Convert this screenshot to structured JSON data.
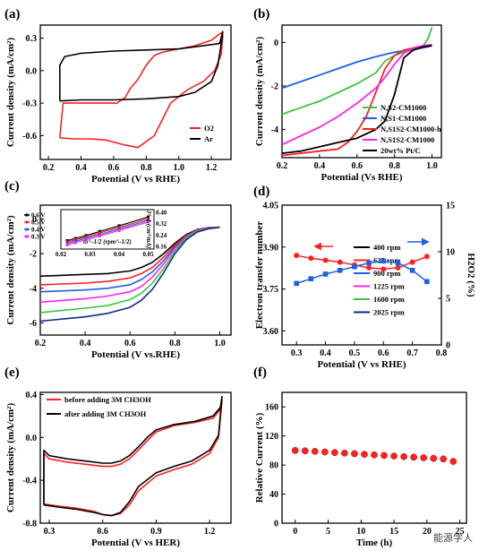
{
  "chart_data": [
    {
      "panel": "(a)",
      "type": "line",
      "xlabel": "Potential (V vs RHE)",
      "ylabel": "Current density (mA/cm²)",
      "xlim": [
        0.15,
        1.32
      ],
      "ylim": [
        -0.82,
        0.42
      ],
      "xticks": [
        "0.2",
        "0.4",
        "0.6",
        "0.8",
        "1.0",
        "1.2"
      ],
      "yticks": [
        "0.3",
        "0.0",
        "-0.3",
        "-0.6"
      ],
      "legend_position": "bottom-right",
      "series": [
        {
          "name": "O2",
          "color": "#ff2020",
          "x": [
            0.27,
            0.35,
            0.45,
            0.55,
            0.65,
            0.75,
            0.85,
            0.95,
            1.05,
            1.15,
            1.22,
            1.26,
            1.27,
            1.26,
            1.2,
            1.1,
            1.0,
            0.9,
            0.85,
            0.8,
            0.75,
            0.7,
            0.67,
            0.62,
            0.55,
            0.45,
            0.35,
            0.29,
            0.27
          ],
          "y": [
            -0.62,
            -0.63,
            -0.63,
            -0.64,
            -0.68,
            -0.71,
            -0.6,
            -0.3,
            -0.18,
            -0.1,
            0.0,
            0.15,
            0.32,
            0.35,
            0.28,
            0.23,
            0.2,
            0.17,
            0.14,
            0.05,
            -0.08,
            -0.17,
            -0.25,
            -0.3,
            -0.3,
            -0.3,
            -0.3,
            -0.3,
            -0.62
          ]
        },
        {
          "name": "Ar",
          "color": "#000000",
          "x": [
            0.27,
            0.4,
            0.6,
            0.8,
            1.0,
            1.1,
            1.2,
            1.24,
            1.26,
            1.27,
            1.25,
            1.2,
            1.1,
            1.0,
            0.8,
            0.6,
            0.4,
            0.3,
            0.27,
            0.27
          ],
          "y": [
            -0.28,
            -0.27,
            -0.27,
            -0.26,
            -0.24,
            -0.2,
            -0.1,
            0.05,
            0.25,
            0.36,
            0.25,
            0.24,
            0.22,
            0.2,
            0.19,
            0.18,
            0.16,
            0.13,
            0.05,
            -0.28
          ]
        }
      ]
    },
    {
      "panel": "(b)",
      "type": "line",
      "xlabel": "Potential (Vs RHE)",
      "ylabel": "Current density (mA/cm²)",
      "xlim": [
        0.2,
        1.05
      ],
      "ylim": [
        -5.3,
        0.8
      ],
      "xticks": [
        "0.2",
        "0.4",
        "0.6",
        "0.8",
        "1.0"
      ],
      "yticks": [
        "0",
        "-2",
        "-4"
      ],
      "legend_position": "bottom-right",
      "series": [
        {
          "name": "N,S2-CM1000",
          "color": "#3cc43c",
          "x": [
            0.2,
            0.3,
            0.4,
            0.5,
            0.6,
            0.7,
            0.75,
            0.8,
            0.85,
            0.9,
            0.95,
            0.98,
            1.0
          ],
          "y": [
            -3.3,
            -3.0,
            -2.7,
            -2.3,
            -1.9,
            -1.4,
            -0.85,
            -0.6,
            -0.45,
            -0.35,
            -0.2,
            0.2,
            0.7
          ]
        },
        {
          "name": "N,S1-CM1000",
          "color": "#1e5fe6",
          "x": [
            0.2,
            0.3,
            0.4,
            0.5,
            0.6,
            0.7,
            0.8,
            0.85,
            0.9,
            0.95,
            1.0
          ],
          "y": [
            -2.1,
            -1.8,
            -1.5,
            -1.2,
            -0.9,
            -0.65,
            -0.45,
            -0.38,
            -0.32,
            -0.25,
            -0.15
          ]
        },
        {
          "name": "N,S1S2-CM1000-h",
          "color": "#ff2020",
          "x": [
            0.2,
            0.3,
            0.4,
            0.5,
            0.55,
            0.6,
            0.65,
            0.7,
            0.75,
            0.8,
            0.85,
            0.9,
            0.95,
            1.0
          ],
          "y": [
            -5.2,
            -5.1,
            -5.0,
            -4.9,
            -4.6,
            -4.1,
            -3.4,
            -2.3,
            -1.2,
            -0.6,
            -0.35,
            -0.25,
            -0.18,
            -0.12
          ]
        },
        {
          "name": "N,S1S2-CM1000",
          "color": "#ff22ee",
          "x": [
            0.2,
            0.3,
            0.4,
            0.5,
            0.6,
            0.7,
            0.75,
            0.8,
            0.85,
            0.9,
            0.95,
            1.0
          ],
          "y": [
            -4.7,
            -4.3,
            -3.9,
            -3.4,
            -2.8,
            -2.1,
            -1.6,
            -1.0,
            -0.5,
            -0.25,
            -0.15,
            -0.1
          ]
        },
        {
          "name": "20wt% Pt/C",
          "color": "#000000",
          "x": [
            0.2,
            0.3,
            0.4,
            0.5,
            0.6,
            0.7,
            0.75,
            0.8,
            0.85,
            0.9,
            0.95,
            1.0
          ],
          "y": [
            -5.1,
            -5.0,
            -4.8,
            -4.6,
            -4.4,
            -4.0,
            -3.6,
            -2.4,
            -0.7,
            -0.35,
            -0.2,
            -0.15
          ]
        }
      ]
    },
    {
      "panel": "(c)",
      "type": "line",
      "xlabel": "Potential (V vs.RHE)",
      "ylabel": "Current density (mA/cm²)",
      "xlim": [
        0.2,
        1.05
      ],
      "ylim": [
        -6.7,
        0.8
      ],
      "xticks": [
        "0.2",
        "0.4",
        "0.6",
        "0.8",
        "1.0"
      ],
      "yticks": [
        "0",
        "-2",
        "-4",
        "-6"
      ],
      "legend_position": "bottom-right",
      "series": [
        {
          "name": "400 rpm",
          "color": "#000000",
          "x": [
            0.2,
            0.4,
            0.5,
            0.6,
            0.65,
            0.7,
            0.75,
            0.8,
            0.85,
            0.9,
            0.95,
            1.0
          ],
          "y": [
            -3.3,
            -3.2,
            -3.15,
            -3.0,
            -2.8,
            -2.5,
            -2.0,
            -1.4,
            -0.9,
            -0.6,
            -0.5,
            -0.48
          ]
        },
        {
          "name": "625 rpm",
          "color": "#ff2020",
          "x": [
            0.2,
            0.4,
            0.5,
            0.6,
            0.65,
            0.7,
            0.75,
            0.8,
            0.85,
            0.9,
            0.95,
            1.0
          ],
          "y": [
            -3.8,
            -3.7,
            -3.6,
            -3.4,
            -3.15,
            -2.8,
            -2.2,
            -1.5,
            -0.95,
            -0.62,
            -0.5,
            -0.48
          ]
        },
        {
          "name": "900 rpm",
          "color": "#1e5fe6",
          "x": [
            0.2,
            0.4,
            0.5,
            0.6,
            0.65,
            0.7,
            0.75,
            0.8,
            0.85,
            0.9,
            0.95,
            1.0
          ],
          "y": [
            -4.2,
            -4.1,
            -4.0,
            -3.8,
            -3.5,
            -3.05,
            -2.4,
            -1.6,
            -1.0,
            -0.65,
            -0.52,
            -0.48
          ]
        },
        {
          "name": "1225 rpm",
          "color": "#ff22ee",
          "x": [
            0.2,
            0.4,
            0.5,
            0.6,
            0.65,
            0.7,
            0.75,
            0.8,
            0.85,
            0.9,
            0.95,
            1.0
          ],
          "y": [
            -4.8,
            -4.6,
            -4.45,
            -4.2,
            -3.9,
            -3.35,
            -2.6,
            -1.7,
            -1.05,
            -0.67,
            -0.53,
            -0.48
          ]
        },
        {
          "name": "1600 rpm",
          "color": "#3cc43c",
          "x": [
            0.2,
            0.4,
            0.5,
            0.6,
            0.65,
            0.7,
            0.75,
            0.8,
            0.85,
            0.9,
            0.95,
            1.0
          ],
          "y": [
            -5.4,
            -5.15,
            -5.0,
            -4.65,
            -4.3,
            -3.7,
            -2.85,
            -1.85,
            -1.1,
            -0.7,
            -0.55,
            -0.48
          ]
        },
        {
          "name": "2025 rpm",
          "color": "#0a2a8c",
          "x": [
            0.2,
            0.4,
            0.5,
            0.6,
            0.65,
            0.7,
            0.75,
            0.8,
            0.85,
            0.9,
            0.95,
            1.0
          ],
          "y": [
            -5.9,
            -5.65,
            -5.45,
            -5.1,
            -4.7,
            -4.05,
            -3.1,
            -2.0,
            -1.2,
            -0.75,
            -0.56,
            -0.48
          ]
        }
      ],
      "inset": {
        "type": "scatter",
        "xlabel": "ω^-1/2 (rpm^-1/2)",
        "ylabel": "J^-1 (cm²/mA)",
        "xlim": [
          0.02,
          0.052
        ],
        "ylim": [
          0.14,
          0.42
        ],
        "xticks": [
          "0.02",
          "0.03",
          "0.04",
          "0.05"
        ],
        "yticks": [
          "0.40",
          "0.32",
          "0.24",
          "0.16"
        ],
        "x": [
          0.0222,
          0.025,
          0.0286,
          0.0333,
          0.04,
          0.05
        ],
        "series": [
          {
            "name": "0.6 V",
            "color": "#000000",
            "values": [
              0.2,
              0.215,
              0.236,
              0.265,
              0.305,
              0.368
            ]
          },
          {
            "name": "0.5 V",
            "color": "#ff2020",
            "values": [
              0.19,
              0.206,
              0.226,
              0.254,
              0.293,
              0.355
            ]
          },
          {
            "name": "0.4 V",
            "color": "#1e5fe6",
            "values": [
              0.18,
              0.196,
              0.216,
              0.243,
              0.282,
              0.343
            ]
          },
          {
            "name": "0.3 V",
            "color": "#ff22ee",
            "values": [
              0.17,
              0.186,
              0.206,
              0.233,
              0.272,
              0.332
            ]
          }
        ]
      }
    },
    {
      "panel": "(d)",
      "type": "line",
      "xlabel": "Potential (V vs RHE)",
      "ylabel": "Electron transfer number",
      "ylabel_right": "H2O2 (%)",
      "xlim": [
        0.25,
        0.8
      ],
      "ylim": [
        3.55,
        4.05
      ],
      "ylim_right": [
        0,
        15
      ],
      "xticks": [
        "0.3",
        "0.4",
        "0.5",
        "0.6",
        "0.7",
        "0.8"
      ],
      "yticks": [
        "4.05",
        "3.90",
        "3.75",
        "3.60"
      ],
      "yticks_right": [
        "15",
        "10",
        "5",
        "0"
      ],
      "x": [
        0.3,
        0.35,
        0.4,
        0.45,
        0.5,
        0.55,
        0.6,
        0.65,
        0.7,
        0.75
      ],
      "series": [
        {
          "name": "Electron transfer number",
          "axis": "left",
          "color": "#ff2020",
          "values": [
            3.87,
            3.86,
            3.853,
            3.846,
            3.836,
            3.826,
            3.821,
            3.826,
            3.846,
            3.866
          ]
        },
        {
          "name": "H2O2 (%)",
          "axis": "right",
          "color": "#1e5fe6",
          "values": [
            6.6,
            7.1,
            7.6,
            8.0,
            8.4,
            8.8,
            9.0,
            8.8,
            8.0,
            6.8
          ]
        }
      ]
    },
    {
      "panel": "(e)",
      "type": "line",
      "xlabel": "Potential (V vs HER)",
      "ylabel": "Current density (mA/cm²)",
      "xlim": [
        0.25,
        1.32
      ],
      "ylim": [
        -0.8,
        0.42
      ],
      "xticks": [
        "0.3",
        "0.6",
        "0.9",
        "1.2"
      ],
      "yticks": [
        "0.4",
        "0.0",
        "-0.4",
        "-0.8"
      ],
      "legend_position": "top-left",
      "series": [
        {
          "name": "before adding 3M CH3OH",
          "color": "#ff2020",
          "x": [
            0.27,
            0.35,
            0.45,
            0.55,
            0.6,
            0.65,
            0.7,
            0.75,
            0.8,
            0.9,
            1.0,
            1.1,
            1.2,
            1.25,
            1.27,
            1.26,
            1.22,
            1.12,
            1.0,
            0.9,
            0.85,
            0.8,
            0.75,
            0.7,
            0.65,
            0.6,
            0.5,
            0.4,
            0.3,
            0.27,
            0.27
          ],
          "y": [
            -0.62,
            -0.64,
            -0.66,
            -0.69,
            -0.72,
            -0.73,
            -0.71,
            -0.63,
            -0.5,
            -0.36,
            -0.3,
            -0.25,
            -0.15,
            0.0,
            0.35,
            0.26,
            0.18,
            0.14,
            0.11,
            0.05,
            -0.03,
            -0.12,
            -0.2,
            -0.25,
            -0.27,
            -0.27,
            -0.25,
            -0.23,
            -0.2,
            -0.15,
            -0.62
          ]
        },
        {
          "name": "after adding 3M CH3OH",
          "color": "#000000",
          "x": [
            0.27,
            0.35,
            0.45,
            0.55,
            0.6,
            0.65,
            0.7,
            0.75,
            0.8,
            0.9,
            1.0,
            1.1,
            1.2,
            1.25,
            1.27,
            1.26,
            1.22,
            1.12,
            1.0,
            0.9,
            0.85,
            0.8,
            0.75,
            0.7,
            0.65,
            0.6,
            0.5,
            0.4,
            0.3,
            0.27,
            0.27
          ],
          "y": [
            -0.63,
            -0.65,
            -0.67,
            -0.7,
            -0.72,
            -0.73,
            -0.7,
            -0.6,
            -0.46,
            -0.33,
            -0.27,
            -0.22,
            -0.12,
            0.02,
            0.38,
            0.28,
            0.2,
            0.15,
            0.12,
            0.07,
            0.0,
            -0.09,
            -0.17,
            -0.22,
            -0.24,
            -0.24,
            -0.22,
            -0.2,
            -0.17,
            -0.12,
            -0.63
          ]
        }
      ]
    },
    {
      "panel": "(f)",
      "type": "scatter",
      "xlabel": "Time (h)",
      "ylabel": "Relative Current (%)",
      "xlim": [
        -2,
        26
      ],
      "ylim": [
        0,
        180
      ],
      "xticks": [
        "0",
        "5",
        "10",
        "15",
        "20",
        "25"
      ],
      "yticks": [
        "0",
        "40",
        "80",
        "120",
        "160"
      ],
      "series": [
        {
          "name": "",
          "color": "#ff2020",
          "x": [
            0,
            1.5,
            3,
            4.5,
            6,
            7.5,
            9,
            10.5,
            12,
            13.5,
            15,
            16.5,
            18,
            19.5,
            21,
            22.5,
            24
          ],
          "values": [
            100,
            99.5,
            98.8,
            98,
            97.2,
            96.4,
            95.6,
            94.8,
            94,
            93.2,
            92.4,
            91.6,
            90.8,
            90,
            89.2,
            88.4,
            85
          ]
        }
      ]
    }
  ],
  "watermark": "能源学人"
}
